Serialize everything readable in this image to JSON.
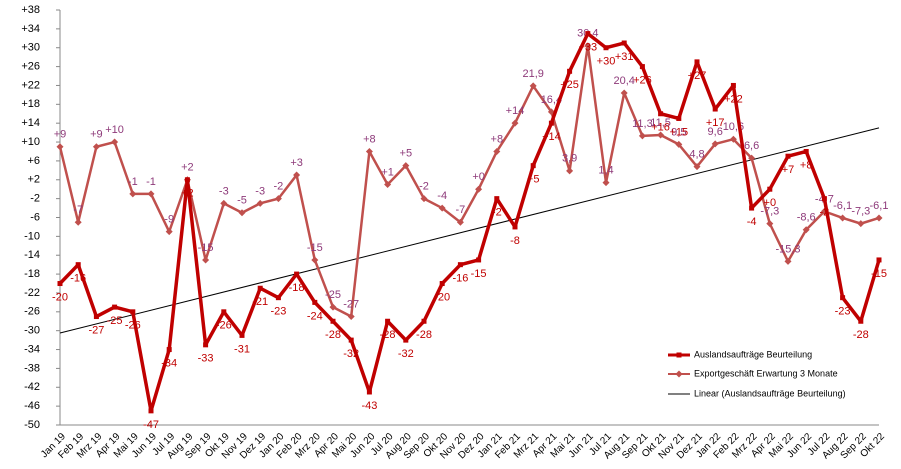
{
  "chart_data": {
    "type": "line",
    "categories": [
      "Jan 19",
      "Feb 19",
      "Mrz 19",
      "Apr 19",
      "Mai 19",
      "Jun 19",
      "Jul 19",
      "Aug 19",
      "Sep 19",
      "Okt 19",
      "Nov 19",
      "Dez 19",
      "Jan 20",
      "Feb 20",
      "Mrz 20",
      "Apr 20",
      "Mai 20",
      "Jun 20",
      "Jul 20",
      "Aug 20",
      "Sep 20",
      "Okt 20",
      "Nov 20",
      "Dez 20",
      "Jan 21",
      "Feb 21",
      "Mrz 21",
      "Apr 21",
      "Mai 21",
      "Jun 21",
      "Jul 21",
      "Aug 21",
      "Sep 21",
      "Okt 21",
      "Nov 21",
      "Dez 21",
      "Jan 22",
      "Feb 22",
      "Mrz 22",
      "Apr 22",
      "Mai 22",
      "Jun 22",
      "Jul 22",
      "Aug 22",
      "Sep 22",
      "Okt 22"
    ],
    "series": [
      {
        "name": "Auslandsaufträge Beurteilung",
        "color": "#c00000",
        "marker": "square",
        "values": [
          -20,
          -16,
          -27,
          -25,
          -26,
          -47,
          -34,
          2,
          -33,
          -26,
          -31,
          -21,
          -23,
          -18,
          -24,
          -28,
          -32,
          -43,
          -28,
          -32,
          -28,
          -20,
          -16,
          -15,
          -2,
          -8,
          5,
          14,
          25,
          33,
          30,
          31,
          26,
          16,
          15,
          27,
          17,
          22,
          -4,
          0,
          7,
          8,
          -2,
          -23,
          -28,
          -15
        ],
        "value_labels": [
          "-20",
          "-16",
          "-27",
          "-25",
          "-26",
          "-47",
          "-34",
          "+2",
          "-33",
          "-26",
          "-31",
          "-21",
          "-23",
          "-18",
          "-24",
          "-28",
          "-32",
          "-43",
          "-28",
          "-32",
          "-28",
          "-20",
          "-16",
          "-15",
          "-2",
          "-8",
          "+5",
          "+14",
          "+25",
          "+33",
          "+30",
          "+31",
          "+26",
          "+16",
          "+15",
          "+27",
          "+17",
          "+22",
          "-4",
          "+0",
          "+7",
          "+8",
          "-2",
          "-23",
          "-28",
          "-15"
        ]
      },
      {
        "name": "Exportgeschäft Erwartung 3 Monate",
        "color": "#c0504d",
        "marker": "diamond",
        "values": [
          9,
          -7,
          9,
          10,
          -1,
          -1,
          -9,
          2,
          -15,
          -3,
          -5,
          -3,
          -2,
          3,
          -15,
          -25,
          -27,
          8,
          1,
          5,
          -2,
          -4,
          -7,
          0,
          8,
          14,
          21.9,
          16.4,
          3.9,
          30.4,
          1.4,
          20.4,
          11.3,
          11.5,
          9.5,
          4.8,
          9.6,
          10.6,
          6.6,
          -7.3,
          -15.3,
          -8.6,
          -4.7,
          -6.1,
          -7.3,
          -6.1
        ],
        "value_labels": [
          "+9",
          "-7",
          "+9",
          "+10",
          "-1",
          "-1",
          "-9",
          "+2",
          "-15",
          "-3",
          "-5",
          "-3",
          "-2",
          "+3",
          "-15",
          "-25",
          "-27",
          "+8",
          "+1",
          "+5",
          "-2",
          "-4",
          "-7",
          "+0",
          "+8",
          "+14",
          "21,9",
          "16,4",
          "3,9",
          "30,4",
          "1,4",
          "20,4",
          "11,3",
          "11,5",
          "9,5",
          "4,8",
          "9,6",
          "10,6",
          "6,6",
          "-7,3",
          "-15,3",
          "-8,6",
          "-4,7",
          "-6,1",
          "-7,3",
          "-6,1"
        ]
      }
    ],
    "trendline": {
      "name": "Linear (Auslandsaufträge Beurteilung)",
      "color": "#000000",
      "start": -30.5,
      "end": 13
    },
    "ylim": [
      -50,
      38
    ],
    "yticks": [
      {
        "value": 38,
        "label": "+38"
      },
      {
        "value": 34,
        "label": "+34"
      },
      {
        "value": 30,
        "label": "+30"
      },
      {
        "value": 26,
        "label": "+26"
      },
      {
        "value": 22,
        "label": "+22"
      },
      {
        "value": 18,
        "label": "+18"
      },
      {
        "value": 14,
        "label": "+14"
      },
      {
        "value": 10,
        "label": "+10"
      },
      {
        "value": 6,
        "label": "+6"
      },
      {
        "value": 2,
        "label": "+2"
      },
      -2,
      -6,
      -10,
      -14,
      -18,
      -22,
      -26,
      -30,
      -34,
      -38,
      -42,
      -46,
      -50
    ],
    "grid": false
  }
}
